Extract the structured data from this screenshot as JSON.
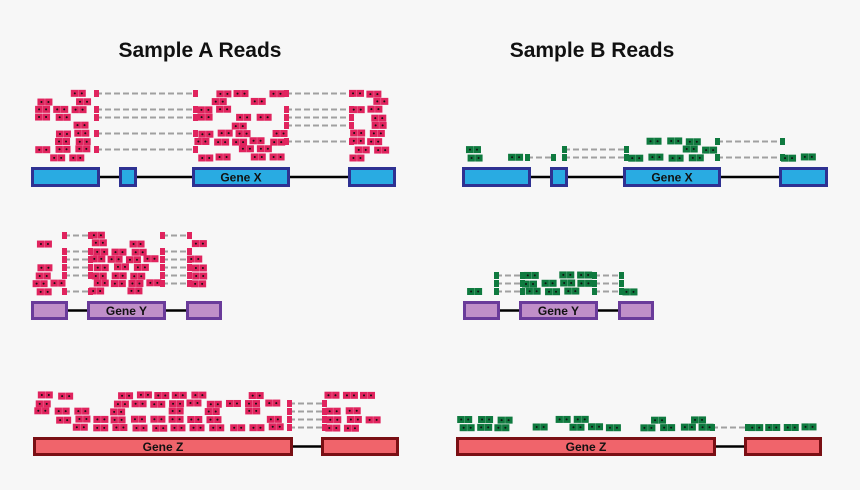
{
  "titles": {
    "sample_a": "Sample A Reads",
    "sample_b": "Sample B Reads"
  },
  "genes": [
    {
      "label": "Gene X",
      "fill": "#29abe2",
      "border": "#2e3192"
    },
    {
      "label": "Gene Y",
      "fill": "#c08fc8",
      "border": "#6a3b9a"
    },
    {
      "label": "Gene Z",
      "fill": "#f0646b",
      "border": "#7a0f14"
    }
  ],
  "colors": {
    "sample_a_reads": "#e0245e",
    "sample_b_reads": "#0f7a3f",
    "junction": "#a0a0a0",
    "intron": "#000000"
  }
}
